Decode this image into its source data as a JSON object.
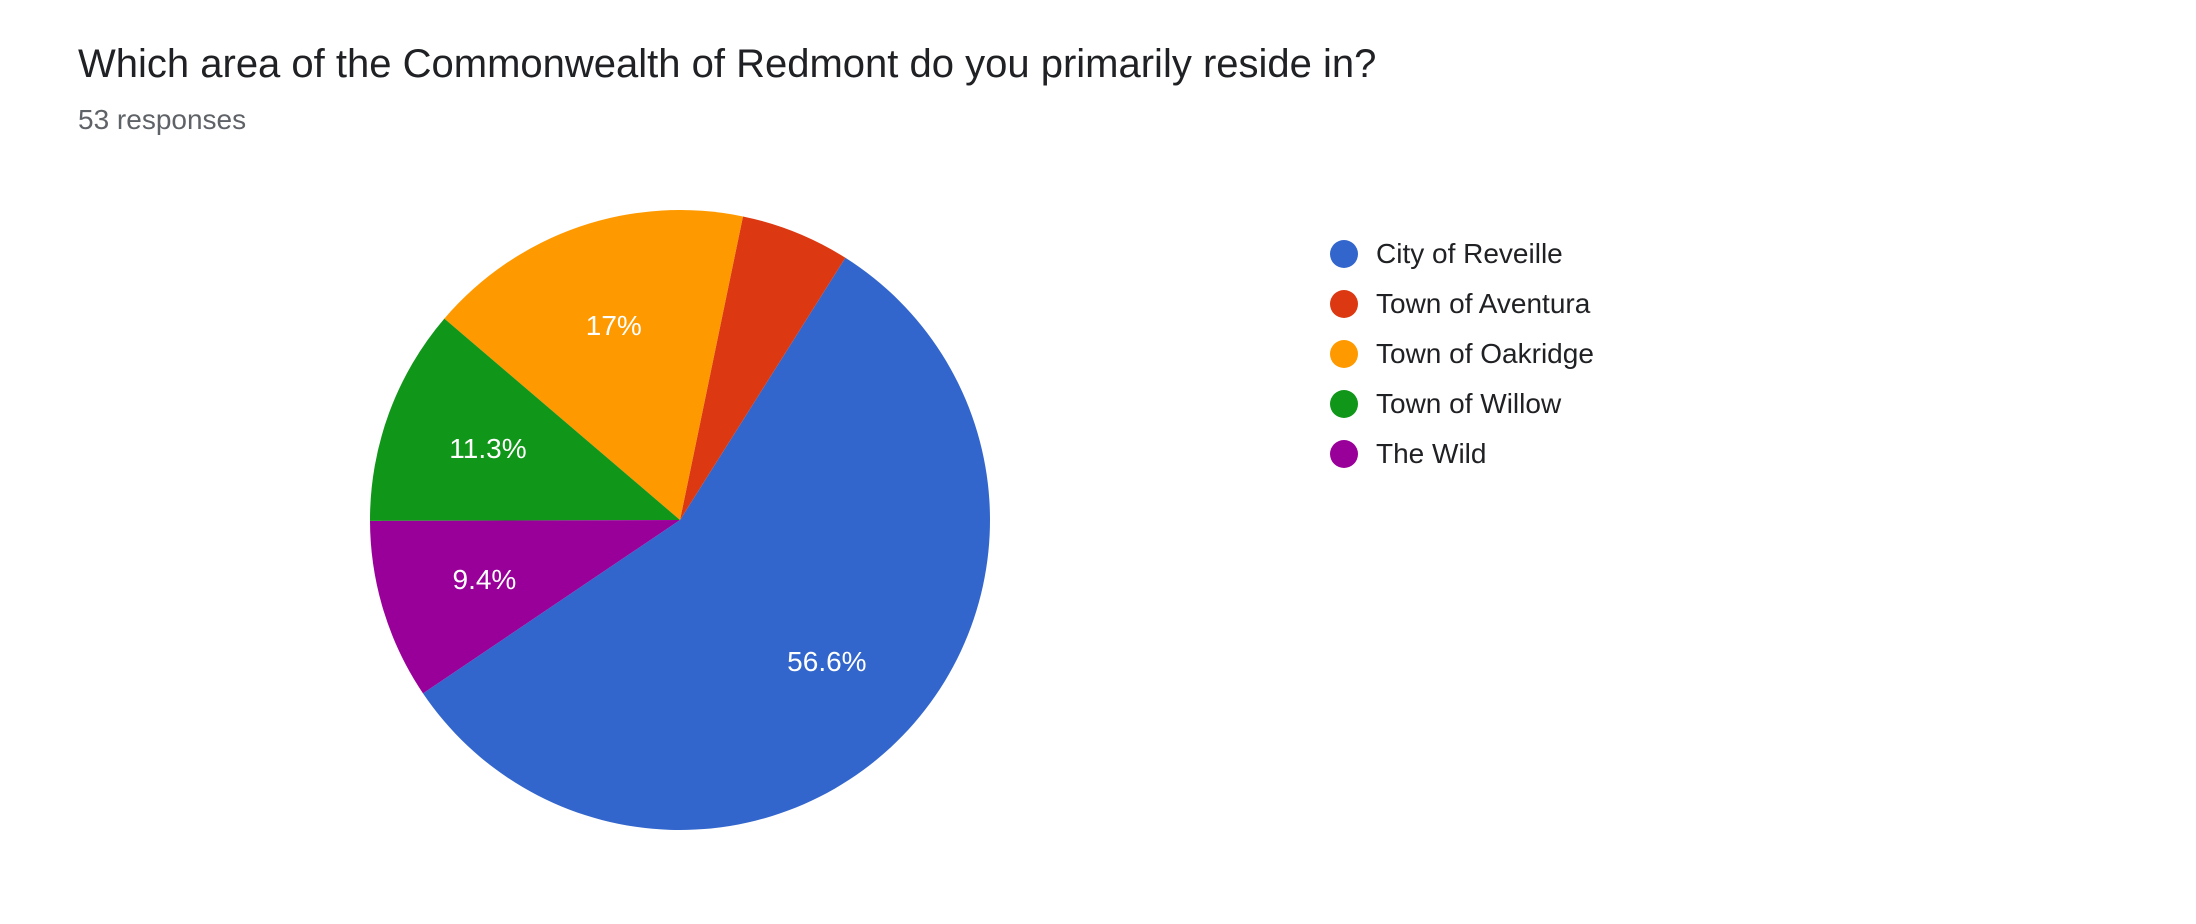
{
  "title": "Which area of the Commonwealth of Redmont do you primarily reside in?",
  "subtitle": "53 responses",
  "chart": {
    "type": "pie",
    "background_color": "#ffffff",
    "title_fontsize": 40,
    "title_color": "#202124",
    "subtitle_fontsize": 28,
    "subtitle_color": "#5f6368",
    "slice_label_fontsize": 28,
    "slice_label_color": "#ffffff",
    "legend_fontsize": 28,
    "legend_label_color": "#202124",
    "start_angle_deg": 146,
    "direction": "counterclockwise",
    "show_label_threshold_pct": 9,
    "slices": [
      {
        "name": "City of Reveille",
        "value": 56.6,
        "color": "#3366cc",
        "label": "56.6%"
      },
      {
        "name": "Town of Aventura",
        "value": 5.7,
        "color": "#dc3912",
        "label": "5.7%"
      },
      {
        "name": "Town of Oakridge",
        "value": 17.0,
        "color": "#ff9900",
        "label": "17%"
      },
      {
        "name": "Town of Willow",
        "value": 11.3,
        "color": "#109618",
        "label": "11.3%"
      },
      {
        "name": "The Wild",
        "value": 9.4,
        "color": "#990099",
        "label": "9.4%"
      }
    ]
  }
}
